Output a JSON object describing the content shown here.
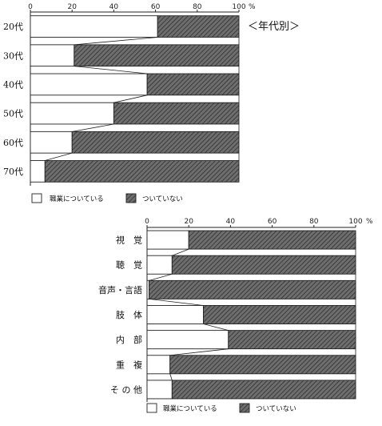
{
  "chart_data": [
    {
      "type": "bar",
      "stacked": true,
      "orientation": "horizontal",
      "annotation": "＜年代別＞",
      "unit": "%",
      "xlim": [
        0,
        100
      ],
      "ticks": [
        "0",
        "20",
        "40",
        "60",
        "80",
        "100"
      ],
      "categories": [
        "20代",
        "30代",
        "40代",
        "50代",
        "60代",
        "70代"
      ],
      "series": [
        {
          "name": "職業についている",
          "values": [
            61,
            21,
            56,
            40,
            20,
            7
          ]
        },
        {
          "name": "ついていない",
          "values": [
            39,
            79,
            44,
            60,
            80,
            93
          ]
        }
      ],
      "legend": [
        "職業についている",
        "ついていない"
      ]
    },
    {
      "type": "bar",
      "stacked": true,
      "orientation": "horizontal",
      "unit": "%",
      "xlim": [
        0,
        100
      ],
      "ticks": [
        "0",
        "20",
        "40",
        "60",
        "80",
        "100"
      ],
      "categories": [
        "視　覚",
        "聴　覚",
        "音声・言語",
        "肢　体",
        "内　部",
        "重　複",
        "そ の 他"
      ],
      "series": [
        {
          "name": "職業についている",
          "values": [
            20,
            12,
            1,
            27,
            39,
            11,
            12
          ]
        },
        {
          "name": "ついていない",
          "values": [
            80,
            88,
            99,
            73,
            61,
            89,
            88
          ]
        }
      ],
      "legend": [
        "職業についている",
        "ついていない"
      ]
    }
  ]
}
